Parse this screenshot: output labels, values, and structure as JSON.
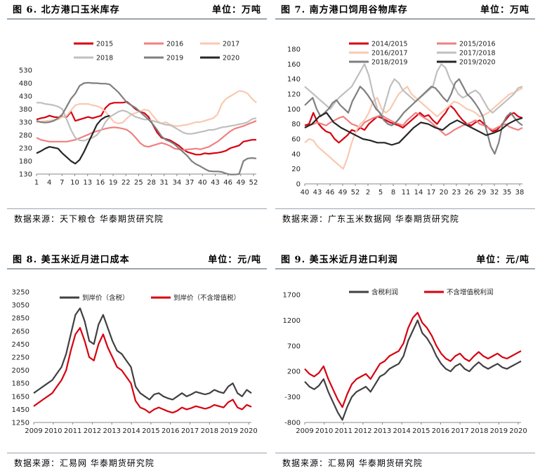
{
  "panels": [
    {
      "title": "图 6. 北方港口玉米库存",
      "unit": "单位：万吨",
      "source": "数据来源：天下粮仓 华泰期货研究院"
    },
    {
      "title": "图 7. 南方港口饲用谷物库存",
      "unit": "单位：万吨",
      "source": "数据来源：广东玉米数据网 华泰期货研究院"
    },
    {
      "title": "图 8. 美玉米近月进口成本",
      "unit": "单位：元/吨",
      "source": "数据来源：汇易网 华泰期货研究院"
    },
    {
      "title": "图 9. 美玉米近月进口利润",
      "unit": "单位：元/吨",
      "source": "数据来源：汇易网 华泰期货研究院"
    }
  ],
  "chart_data": [
    {
      "type": "line",
      "x_ticks": [
        "1",
        "4",
        "7",
        "10",
        "13",
        "16",
        "19",
        "22",
        "25",
        "28",
        "31",
        "34",
        "37",
        "40",
        "43",
        "46",
        "49",
        "52"
      ],
      "ylim": [
        130,
        530
      ],
      "y_ticks": [
        130,
        180,
        230,
        280,
        330,
        380,
        430,
        480,
        530
      ],
      "legend": "top",
      "series": [
        {
          "name": "2015",
          "color": "#d7000f",
          "values": [
            340,
            345,
            348,
            355,
            350,
            348,
            352,
            350,
            370,
            335,
            340,
            345,
            350,
            345,
            350,
            355,
            385,
            400,
            405,
            405,
            405,
            408,
            395,
            380,
            370,
            365,
            350,
            320,
            290,
            270,
            265,
            260,
            250,
            240,
            225,
            215,
            210,
            205,
            205,
            210,
            208,
            210,
            212,
            215,
            220,
            230,
            235,
            240,
            255,
            258,
            262,
            262
          ]
        },
        {
          "name": "2016",
          "color": "#f08080",
          "values": [
            270,
            262,
            258,
            255,
            255,
            255,
            255,
            255,
            258,
            262,
            268,
            275,
            282,
            290,
            295,
            300,
            305,
            308,
            310,
            308,
            305,
            300,
            288,
            270,
            250,
            238,
            235,
            240,
            245,
            250,
            245,
            238,
            228,
            225,
            222,
            225,
            226,
            228,
            225,
            230,
            235,
            245,
            255,
            268,
            282,
            295,
            305,
            310,
            315,
            322,
            328,
            335
          ]
        },
        {
          "name": "2017",
          "color": "#f9c9b0",
          "values": [
            330,
            332,
            334,
            336,
            338,
            340,
            350,
            355,
            375,
            395,
            400,
            400,
            400,
            395,
            392,
            385,
            370,
            350,
            330,
            325,
            328,
            345,
            360,
            365,
            372,
            378,
            375,
            355,
            335,
            325,
            330,
            320,
            315,
            315,
            318,
            320,
            325,
            330,
            330,
            335,
            340,
            345,
            360,
            400,
            420,
            430,
            440,
            450,
            448,
            440,
            420,
            405
          ]
        },
        {
          "name": "2018",
          "color": "#bfbfbf",
          "values": [
            405,
            405,
            400,
            398,
            395,
            390,
            380,
            340,
            300,
            270,
            260,
            258,
            265,
            270,
            280,
            300,
            330,
            350,
            360,
            370,
            375,
            370,
            360,
            350,
            345,
            340,
            340,
            335,
            330,
            325,
            320,
            318,
            310,
            300,
            290,
            285,
            285,
            288,
            292,
            295,
            300,
            300,
            305,
            310,
            312,
            315,
            318,
            322,
            325,
            330,
            342,
            345
          ]
        },
        {
          "name": "2019",
          "color": "#7f7f7f",
          "values": [
            335,
            330,
            328,
            330,
            335,
            345,
            360,
            390,
            420,
            440,
            470,
            480,
            482,
            480,
            480,
            478,
            478,
            475,
            460,
            445,
            425,
            405,
            395,
            385,
            370,
            355,
            340,
            322,
            300,
            275,
            262,
            255,
            245,
            230,
            215,
            200,
            180,
            168,
            160,
            150,
            142,
            140,
            140,
            138,
            132,
            128,
            128,
            130,
            180,
            190,
            192,
            190
          ]
        },
        {
          "name": "2020",
          "color": "#262626",
          "values": [
            210,
            218,
            228,
            235,
            232,
            228,
            210,
            195,
            180,
            170,
            185,
            215,
            250,
            285,
            320,
            340,
            350,
            355
          ]
        }
      ]
    },
    {
      "type": "line",
      "x_ticks": [
        "40",
        "43",
        "46",
        "49",
        "52",
        "2",
        "5",
        "8",
        "11",
        "14",
        "17",
        "20",
        "23",
        "26",
        "29",
        "32",
        "35",
        "38"
      ],
      "ylim": [
        0,
        180
      ],
      "y_ticks": [
        0,
        20,
        40,
        60,
        80,
        100,
        120,
        140,
        160,
        180
      ],
      "legend": "top",
      "series": [
        {
          "name": "2014/2015",
          "color": "#d7000f",
          "values": [
            78,
            80,
            95,
            82,
            75,
            70,
            68,
            60,
            55,
            60,
            65,
            72,
            70,
            75,
            72,
            80,
            85,
            90,
            88,
            85,
            82,
            80,
            78,
            75,
            80,
            85,
            90,
            95,
            90,
            92,
            85,
            80,
            88,
            95,
            105,
            100,
            92,
            85,
            80,
            78,
            82,
            85,
            80,
            75,
            70,
            72,
            78,
            85,
            92,
            95,
            90,
            88
          ]
        },
        {
          "name": "2015/2016",
          "color": "#f08080",
          "values": [
            75,
            78,
            80,
            82,
            80,
            78,
            82,
            85,
            88,
            90,
            85,
            80,
            78,
            75,
            82,
            85,
            88,
            90,
            92,
            88,
            85,
            82,
            80,
            78,
            85,
            90,
            95,
            92,
            88,
            85,
            80,
            75,
            70,
            65,
            68,
            72,
            75,
            78,
            80,
            82,
            85,
            80,
            78,
            75,
            72,
            75,
            78,
            80,
            76,
            74,
            72,
            75
          ]
        },
        {
          "name": "2016/2017",
          "color": "#f9c9b0",
          "values": [
            55,
            60,
            58,
            50,
            45,
            40,
            35,
            30,
            25,
            20,
            35,
            55,
            70,
            80,
            85,
            95,
            110,
            115,
            100,
            95,
            100,
            110,
            120,
            125,
            130,
            120,
            115,
            110,
            105,
            100,
            95,
            90,
            95,
            100,
            105,
            110,
            108,
            104,
            100,
            98,
            95,
            90,
            92,
            95,
            100,
            105,
            110,
            115,
            120,
            122,
            125,
            128
          ]
        },
        {
          "name": "2017/2018",
          "color": "#bfbfbf",
          "values": [
            130,
            125,
            120,
            115,
            110,
            105,
            100,
            108,
            115,
            120,
            125,
            130,
            140,
            150,
            160,
            145,
            120,
            100,
            90,
            110,
            130,
            140,
            135,
            125,
            120,
            115,
            110,
            115,
            120,
            125,
            130,
            150,
            160,
            155,
            140,
            130,
            120,
            115,
            118,
            122,
            125,
            120,
            110,
            100,
            95,
            100,
            105,
            110,
            115,
            120,
            128,
            130
          ]
        },
        {
          "name": "2018/2019",
          "color": "#7f7f7f",
          "values": [
            105,
            110,
            115,
            100,
            90,
            95,
            100,
            108,
            112,
            105,
            100,
            95,
            110,
            120,
            130,
            125,
            118,
            110,
            100,
            95,
            85,
            80,
            78,
            82,
            88,
            95,
            100,
            105,
            110,
            115,
            120,
            125,
            130,
            128,
            122,
            115,
            110,
            120,
            135,
            140,
            130,
            120,
            115,
            108,
            100,
            90,
            70,
            50,
            40,
            55,
            80,
            90,
            95,
            88,
            82,
            78
          ]
        },
        {
          "name": "2019/2020",
          "color": "#262626",
          "values": [
            75,
            80,
            90,
            95,
            82,
            75,
            70,
            65,
            60,
            58,
            55,
            55,
            52,
            55,
            65,
            75,
            82,
            80,
            75,
            72,
            80,
            85,
            80,
            75,
            70,
            65,
            68,
            72,
            80,
            85,
            88
          ]
        }
      ]
    },
    {
      "type": "line",
      "x_ticks": [
        "2009",
        "2010",
        "2011",
        "2012",
        "2013",
        "2014",
        "2015",
        "2016",
        "2017",
        "2018",
        "2019",
        "2020"
      ],
      "ylim": [
        1250,
        3250
      ],
      "y_ticks": [
        1250,
        1450,
        1650,
        1850,
        2050,
        2250,
        2450,
        2650,
        2850,
        3050,
        3250
      ],
      "legend": "top",
      "series": [
        {
          "name": "到岸价（含税）",
          "color": "#404040",
          "values": [
            1700,
            1750,
            1800,
            1850,
            1900,
            2000,
            2100,
            2300,
            2600,
            2900,
            3000,
            2800,
            2500,
            2450,
            2750,
            2900,
            2700,
            2500,
            2350,
            2300,
            2200,
            2100,
            1800,
            1700,
            1650,
            1600,
            1680,
            1700,
            1650,
            1620,
            1600,
            1650,
            1700,
            1650,
            1680,
            1720,
            1700,
            1680,
            1700,
            1750,
            1720,
            1700,
            1800,
            1850,
            1700,
            1650,
            1750,
            1700
          ]
        },
        {
          "name": "到岸价（不含增值税）",
          "color": "#d7000f",
          "values": [
            1500,
            1550,
            1600,
            1650,
            1700,
            1800,
            1900,
            2050,
            2350,
            2600,
            2700,
            2500,
            2250,
            2200,
            2450,
            2600,
            2400,
            2250,
            2100,
            2050,
            1950,
            1850,
            1580,
            1480,
            1450,
            1400,
            1450,
            1480,
            1450,
            1420,
            1400,
            1430,
            1480,
            1450,
            1470,
            1500,
            1480,
            1460,
            1480,
            1520,
            1500,
            1480,
            1560,
            1600,
            1480,
            1450,
            1520,
            1490
          ]
        }
      ]
    },
    {
      "type": "line",
      "x_ticks": [
        "2009",
        "2010",
        "2011",
        "2012",
        "2013",
        "2014",
        "2015",
        "2016",
        "2017",
        "2018",
        "2019",
        "2020"
      ],
      "ylim": [
        -800,
        1700
      ],
      "y_ticks": [
        -800,
        -300,
        200,
        700,
        1200,
        1700
      ],
      "legend": "top",
      "series": [
        {
          "name": "含税利润",
          "color": "#404040",
          "values": [
            0,
            -100,
            -150,
            -80,
            50,
            -200,
            -400,
            -600,
            -750,
            -500,
            -300,
            -200,
            -150,
            -100,
            -200,
            -50,
            100,
            150,
            250,
            300,
            350,
            500,
            800,
            1000,
            1200,
            950,
            850,
            700,
            500,
            350,
            250,
            200,
            300,
            350,
            250,
            200,
            300,
            380,
            300,
            250,
            300,
            350,
            280,
            250,
            300,
            350,
            400
          ]
        },
        {
          "name": "不含增值税利润",
          "color": "#d7000f",
          "values": [
            250,
            150,
            100,
            170,
            300,
            50,
            -150,
            -350,
            -500,
            -250,
            -50,
            50,
            100,
            150,
            50,
            200,
            350,
            400,
            500,
            550,
            600,
            750,
            1050,
            1250,
            1350,
            1150,
            1050,
            900,
            700,
            550,
            450,
            400,
            500,
            550,
            450,
            400,
            500,
            580,
            500,
            450,
            500,
            550,
            480,
            450,
            500,
            550,
            600
          ]
        }
      ]
    }
  ]
}
